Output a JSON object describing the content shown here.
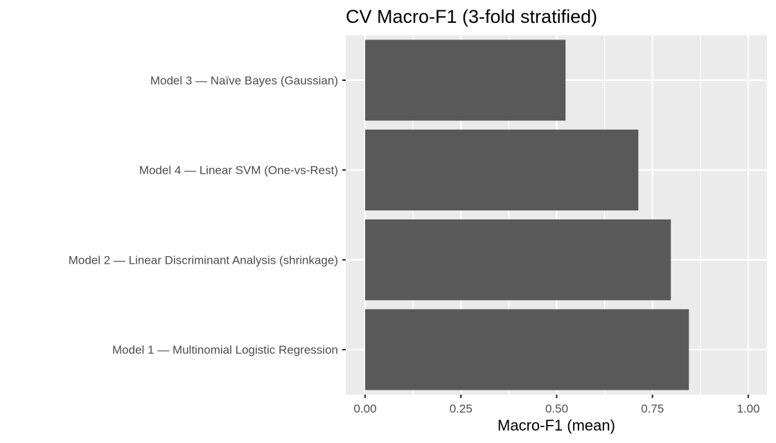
{
  "chart_data": {
    "type": "bar",
    "orientation": "horizontal",
    "title": "CV Macro-F1 (3-fold stratified)",
    "xlabel": "Macro-F1 (mean)",
    "ylabel": "",
    "xlim": [
      0,
      1
    ],
    "x_ticks": [
      "0.00",
      "0.25",
      "0.50",
      "0.75",
      "1.00"
    ],
    "categories": [
      "Model 3 — Naïve Bayes (Gaussian)",
      "Model 4 — Linear SVM (One-vs-Rest)",
      "Model 2 — Linear Discriminant Analysis (shrinkage)",
      "Model 1 — Multinomial Logistic Regression"
    ],
    "values": [
      0.523,
      0.713,
      0.798,
      0.845
    ],
    "grid": true,
    "legend": "none",
    "colors": {
      "bar": "#595959",
      "panel": "#ebebeb",
      "grid": "#ffffff"
    }
  }
}
